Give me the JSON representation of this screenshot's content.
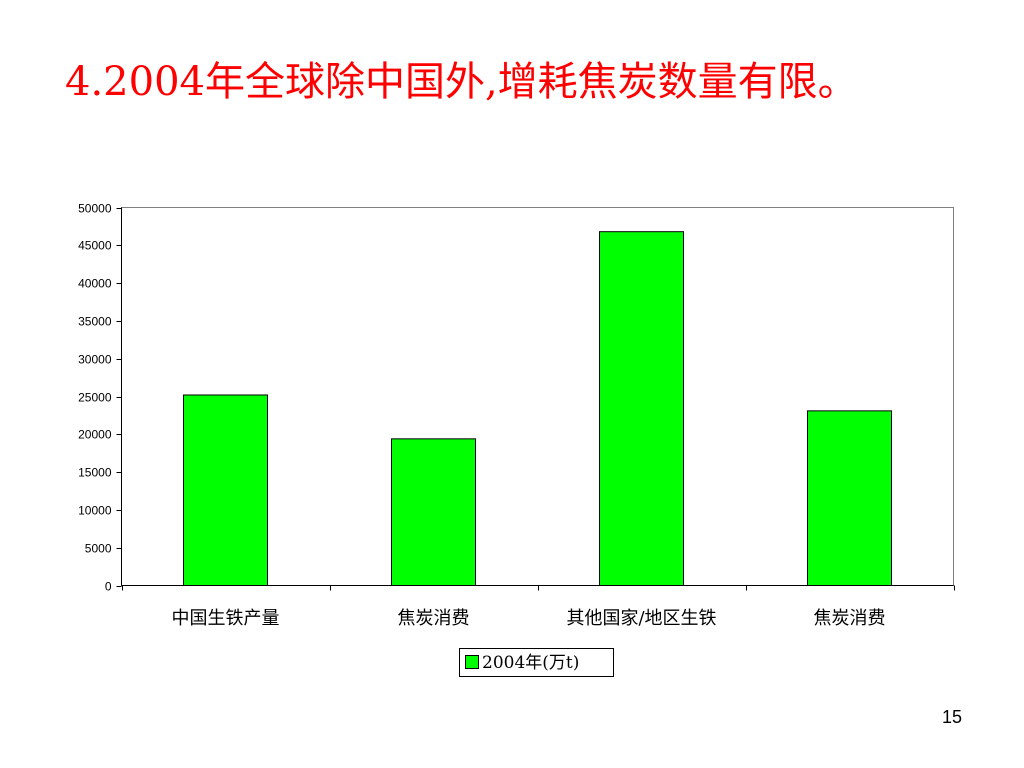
{
  "title": "4.2004年全球除中国外,增耗焦炭数量有限。",
  "page_number": "15",
  "colors": {
    "title": "#FF0000",
    "bar": "#00FF00",
    "bar_stroke": "#000000",
    "background": "#FFFFFF"
  },
  "chart_data": {
    "type": "bar",
    "categories": [
      "中国生铁产量",
      "焦炭消费",
      "其他国家/地区生铁",
      "焦炭消费"
    ],
    "series": [
      {
        "name": "2004年(万t)",
        "values": [
          25200,
          19400,
          46800,
          23100
        ]
      }
    ],
    "ylim": [
      0,
      50000
    ],
    "yticks": [
      0,
      5000,
      10000,
      15000,
      20000,
      25000,
      30000,
      35000,
      40000,
      45000,
      50000
    ],
    "grid": false,
    "legend": "bottom-center"
  }
}
